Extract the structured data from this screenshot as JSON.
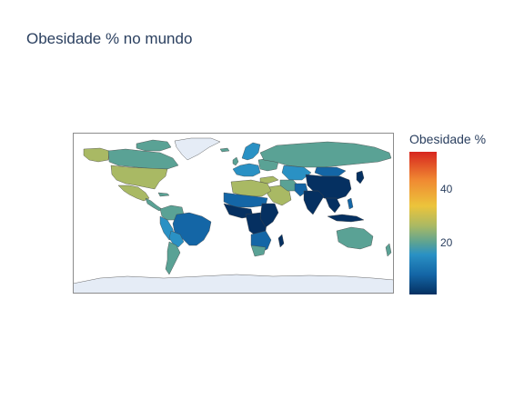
{
  "title": "Obesidade % no mundo",
  "colorbar": {
    "title": "Obesidade %",
    "ticks": [
      {
        "label": "40",
        "value": 40
      },
      {
        "label": "20",
        "value": 20
      }
    ],
    "range": [
      0.5,
      54
    ],
    "colorscale": [
      "#053061",
      "#1466a6",
      "#2a91c4",
      "#5aa295",
      "#a9b964",
      "#ecc43b",
      "#f08a32",
      "#d7261f"
    ]
  },
  "colors": {
    "ocean": "#ffffff",
    "frame": "#8c8c8c",
    "border": "#444444",
    "no_data_land": "#e5ecf6"
  }
}
